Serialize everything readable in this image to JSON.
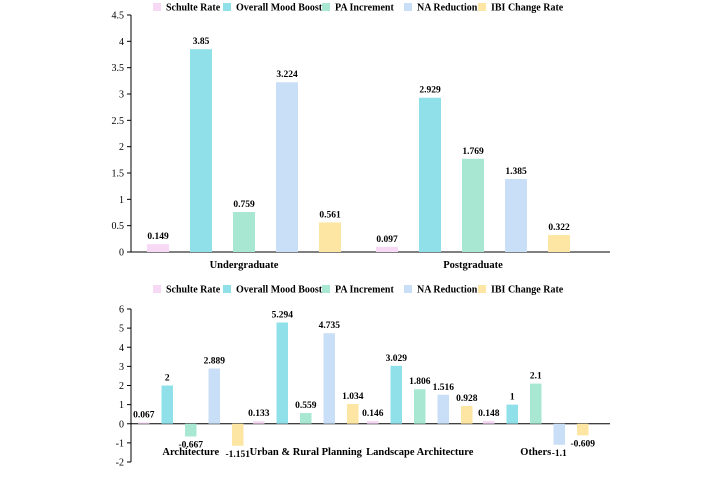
{
  "chart_data": [
    {
      "type": "bar",
      "categories": [
        "Undergraduate",
        "Postgraduate"
      ],
      "series": [
        {
          "name": "Schulte Rate",
          "color": "#f7d9f5",
          "values": [
            0.149,
            0.097
          ]
        },
        {
          "name": "Overall Mood Boost",
          "color": "#8fe0e8",
          "values": [
            3.85,
            2.929
          ]
        },
        {
          "name": "PA Increment",
          "color": "#a8e8d2",
          "values": [
            0.759,
            1.769
          ]
        },
        {
          "name": "NA Reduction",
          "color": "#c9dff7",
          "values": [
            3.224,
            1.385
          ]
        },
        {
          "name": "IBI Change Rate",
          "color": "#fde6a3",
          "values": [
            0.561,
            0.322
          ]
        }
      ],
      "data_labels": [
        [
          "0.149",
          "3.85",
          "0.759",
          "3.224",
          "0.561"
        ],
        [
          "0.097",
          "2.929",
          "1.769",
          "1.385",
          "0.322"
        ]
      ],
      "yticks": [
        "0",
        "0.5",
        "1",
        "1.5",
        "2",
        "2.5",
        "3",
        "3.5",
        "4",
        "4.5"
      ],
      "ylim": [
        0,
        4.5
      ],
      "legend_position": "top",
      "grid": false,
      "title": "",
      "xlabel": "",
      "ylabel": ""
    },
    {
      "type": "bar",
      "categories": [
        "Architecture",
        "Urban & Rural Planning",
        "Landscape Architecture",
        "Others"
      ],
      "series": [
        {
          "name": "Schulte Rate",
          "color": "#f7d9f5",
          "values": [
            0.067,
            0.133,
            0.146,
            0.148
          ]
        },
        {
          "name": "Overall Mood Boost",
          "color": "#8fe0e8",
          "values": [
            2,
            5.294,
            3.029,
            1
          ]
        },
        {
          "name": "PA Increment",
          "color": "#a8e8d2",
          "values": [
            -0.667,
            0.559,
            1.806,
            2.1
          ]
        },
        {
          "name": "NA Reduction",
          "color": "#c9dff7",
          "values": [
            2.889,
            4.735,
            1.516,
            -1.1
          ]
        },
        {
          "name": "IBI Change Rate",
          "color": "#fde6a3",
          "values": [
            -1.151,
            1.034,
            0.928,
            -0.609
          ]
        }
      ],
      "data_labels": [
        [
          "0.067",
          "2",
          "-0.667",
          "2.889",
          "-1.151"
        ],
        [
          "0.133",
          "5.294",
          "0.559",
          "4.735",
          "1.034"
        ],
        [
          "0.146",
          "3.029",
          "1.806",
          "1.516",
          "0.928"
        ],
        [
          "0.148",
          "1",
          "2.1",
          "-1.1",
          "-0.609"
        ]
      ],
      "yticks": [
        "-2",
        "-1",
        "0",
        "1",
        "2",
        "3",
        "4",
        "5",
        "6"
      ],
      "ylim": [
        -2,
        6
      ],
      "legend_position": "top",
      "grid": false,
      "title": "",
      "xlabel": "",
      "ylabel": ""
    }
  ]
}
